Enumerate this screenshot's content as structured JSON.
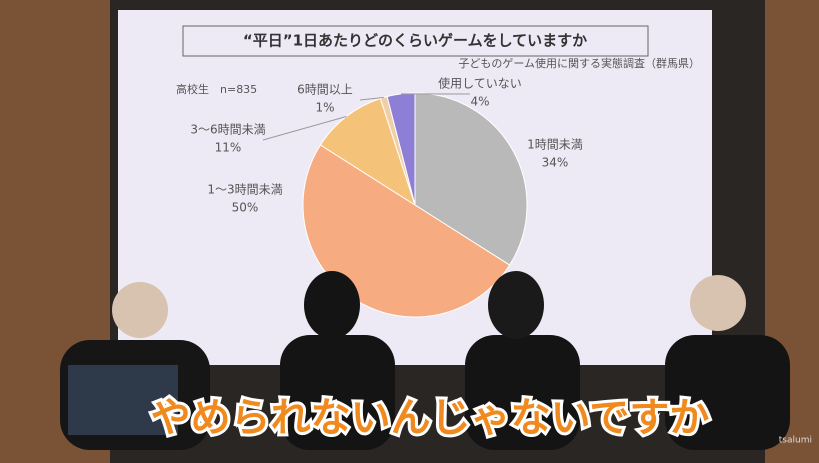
{
  "chart_data": {
    "type": "pie",
    "title": "“平日”1日あたりどのくらいゲームをしていますか",
    "subtitle": "子どものゲーム使用に関する実態調査（群馬県）",
    "annotation": "高校生　n=835",
    "categories": [
      "1時間未満",
      "1～3時間未満",
      "3～6時間未満",
      "6時間以上",
      "使用していない"
    ],
    "values": [
      34,
      50,
      11,
      1,
      4
    ],
    "value_labels": [
      "34%",
      "50%",
      "11%",
      "1%",
      "4%"
    ],
    "colors": [
      "#b9b9b9",
      "#f6ab80",
      "#f5c27a",
      "#f0cfa8",
      "#8e7fd6"
    ]
  },
  "caption": "やめられないんじゃないですか",
  "watermark": "tsalumi"
}
